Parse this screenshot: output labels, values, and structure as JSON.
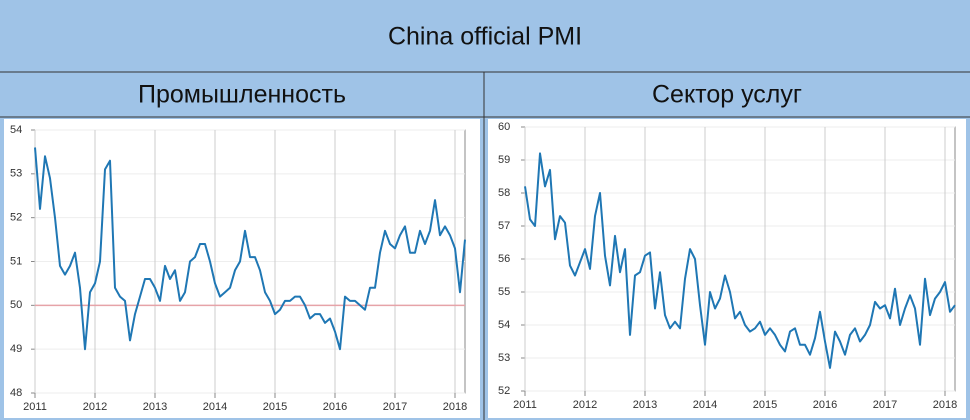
{
  "header": {
    "title": "China official PMI"
  },
  "chart_data": [
    {
      "type": "line",
      "title": "Промышленность",
      "categories": [
        "2011",
        null,
        null,
        null,
        null,
        null,
        null,
        null,
        null,
        null,
        null,
        null,
        "2012",
        null,
        null,
        null,
        null,
        null,
        null,
        null,
        null,
        null,
        null,
        null,
        "2013",
        null,
        null,
        null,
        null,
        null,
        null,
        null,
        null,
        null,
        null,
        null,
        "2014",
        null,
        null,
        null,
        null,
        null,
        null,
        null,
        null,
        null,
        null,
        null,
        "2015",
        null,
        null,
        null,
        null,
        null,
        null,
        null,
        null,
        null,
        null,
        null,
        "2016",
        null,
        null,
        null,
        null,
        null,
        null,
        null,
        null,
        null,
        null,
        null,
        "2017",
        null,
        null,
        null,
        null,
        null,
        null,
        null,
        null,
        null,
        null,
        null,
        "2018",
        null,
        null
      ],
      "series": [
        {
          "color": "#1f77b4",
          "values": [
            53.6,
            52.2,
            53.4,
            52.9,
            52.0,
            50.9,
            50.7,
            50.9,
            51.2,
            50.4,
            49.0,
            50.3,
            50.5,
            51.0,
            53.1,
            53.3,
            50.4,
            50.2,
            50.1,
            49.2,
            49.8,
            50.2,
            50.6,
            50.6,
            50.4,
            50.1,
            50.9,
            50.6,
            50.8,
            50.1,
            50.3,
            51.0,
            51.1,
            51.4,
            51.4,
            51.0,
            50.5,
            50.2,
            50.3,
            50.4,
            50.8,
            51.0,
            51.7,
            51.1,
            51.1,
            50.8,
            50.3,
            50.1,
            49.8,
            49.9,
            50.1,
            50.1,
            50.2,
            50.2,
            50.0,
            49.7,
            49.8,
            49.8,
            49.6,
            49.7,
            49.4,
            49.0,
            50.2,
            50.1,
            50.1,
            50.0,
            49.9,
            50.4,
            50.4,
            51.2,
            51.7,
            51.4,
            51.3,
            51.6,
            51.8,
            51.2,
            51.2,
            51.7,
            51.4,
            51.7,
            52.4,
            51.6,
            51.8,
            51.6,
            51.3,
            50.3,
            51.5
          ]
        }
      ],
      "ylim": [
        48,
        54
      ],
      "yticks": [
        48,
        49,
        50,
        51,
        52,
        53,
        54
      ],
      "grid": true,
      "reference_line": {
        "value": 50,
        "color": "#e6a3a8"
      }
    },
    {
      "type": "line",
      "title": "Сектор услуг",
      "categories": [
        "2011",
        null,
        null,
        null,
        null,
        null,
        null,
        null,
        null,
        null,
        null,
        null,
        "2012",
        null,
        null,
        null,
        null,
        null,
        null,
        null,
        null,
        null,
        null,
        null,
        "2013",
        null,
        null,
        null,
        null,
        null,
        null,
        null,
        null,
        null,
        null,
        null,
        "2014",
        null,
        null,
        null,
        null,
        null,
        null,
        null,
        null,
        null,
        null,
        null,
        "2015",
        null,
        null,
        null,
        null,
        null,
        null,
        null,
        null,
        null,
        null,
        null,
        "2016",
        null,
        null,
        null,
        null,
        null,
        null,
        null,
        null,
        null,
        null,
        null,
        "2017",
        null,
        null,
        null,
        null,
        null,
        null,
        null,
        null,
        null,
        null,
        null,
        "2018",
        null,
        null
      ],
      "series": [
        {
          "color": "#1f77b4",
          "values": [
            58.2,
            57.2,
            57.0,
            59.2,
            58.2,
            58.7,
            56.6,
            57.3,
            57.1,
            55.8,
            55.5,
            55.9,
            56.3,
            55.7,
            57.3,
            58.0,
            56.1,
            55.2,
            56.7,
            55.6,
            56.3,
            53.7,
            55.5,
            55.6,
            56.1,
            56.2,
            54.5,
            55.6,
            54.3,
            53.9,
            54.1,
            53.9,
            55.4,
            56.3,
            56.0,
            54.6,
            53.4,
            55.0,
            54.5,
            54.8,
            55.5,
            55.0,
            54.2,
            54.4,
            54.0,
            53.8,
            53.9,
            54.1,
            53.7,
            53.9,
            53.7,
            53.4,
            53.2,
            53.8,
            53.9,
            53.4,
            53.4,
            53.1,
            53.6,
            54.4,
            53.5,
            52.7,
            53.8,
            53.5,
            53.1,
            53.7,
            53.9,
            53.5,
            53.7,
            54.0,
            54.7,
            54.5,
            54.6,
            54.2,
            55.1,
            54.0,
            54.5,
            54.9,
            54.5,
            53.4,
            55.4,
            54.3,
            54.8,
            55.0,
            55.3,
            54.4,
            54.6
          ]
        }
      ],
      "ylim": [
        52,
        60
      ],
      "yticks": [
        52,
        53,
        54,
        55,
        56,
        57,
        58,
        59,
        60
      ],
      "grid": true
    }
  ]
}
